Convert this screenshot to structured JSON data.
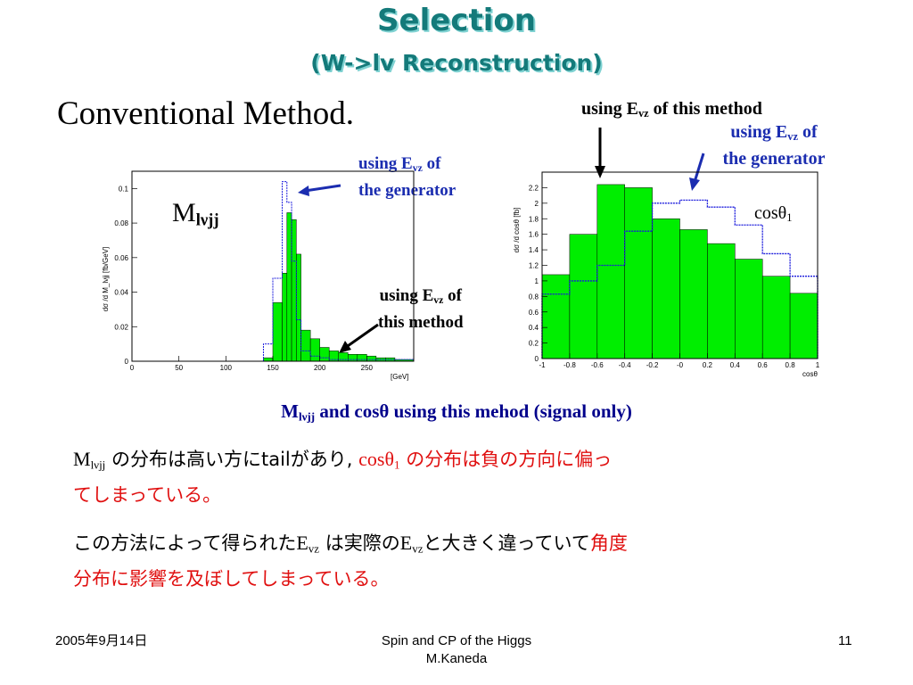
{
  "slide": {
    "title": "Selection",
    "subtitle": "(W->lv Reconstruction)",
    "section_heading": "Conventional Method."
  },
  "annotations": {
    "using_evz": "using E",
    "vz": "vz",
    "of_this_method": " of this method",
    "of": " of",
    "the_generator": "the generator",
    "this_method": "this method",
    "mass_label_M": "M",
    "mass_label_sub": "lνjj",
    "cos_label": "cosθ",
    "cos_sub": "1"
  },
  "caption": {
    "M": "M",
    "sub": "lνjj",
    "rest": " and cosθ using this mehod (signal only)"
  },
  "text": {
    "p1_M": "M",
    "p1_sub": "lνjj",
    "p1_a": " の分布は高い方に",
    "p1_tail": "tail",
    "p1_b": "があり, ",
    "p1_cos": "cosθ",
    "p1_cos_sub": "1",
    "p1_c": "の分布は負の方向に偏っ",
    "p1_d": "てしまっている。",
    "p2_a": "この方法によって得られた",
    "p2_E": "E",
    "p2_vz": "vz",
    "p2_b": " は実際の",
    "p2_c": "と大きく違っていて",
    "p2_red1": "角度",
    "p2_red2": "分布に影響を及ぼしてしまっている。"
  },
  "footer": {
    "date": "2005年9月14日",
    "title_line1": "Spin and CP of the Higgs",
    "title_line2": "M.Kaneda",
    "page": "11"
  },
  "colors": {
    "fill": "#00ee00",
    "generator_line": "#1a1adc",
    "title": "#147a7a",
    "annotation_blue": "#1b2db0",
    "emphasis_red": "#e01010"
  },
  "chart_data": [
    {
      "type": "bar",
      "ylabel": "dσ /d M_lνjj [fb/GeV]",
      "xlabel": "[GeV]",
      "xlim": [
        0,
        300
      ],
      "ylim": [
        0,
        0.11
      ],
      "xticks": [
        "0",
        "50",
        "100",
        "150",
        "200",
        "250"
      ],
      "yticks": [
        "0",
        "0.02",
        "0.04",
        "0.06",
        "0.08",
        "0.1"
      ],
      "bin_edges": [
        140,
        150,
        160,
        165,
        170,
        175,
        180,
        190,
        200,
        210,
        220,
        230,
        240,
        250,
        260,
        270,
        280,
        300
      ],
      "series": [
        {
          "values": [
            0.002,
            0.034,
            0.051,
            0.086,
            0.082,
            0.062,
            0.018,
            0.013,
            0.008,
            0.006,
            0.005,
            0.004,
            0.004,
            0.003,
            0.002,
            0.002,
            0.001
          ]
        },
        {
          "values": [
            0.01,
            0.048,
            0.104,
            0.092,
            0.058,
            0.024,
            0.006,
            0.003,
            0.002,
            0.001,
            0.001,
            0.001,
            0.001,
            0.001,
            0.001,
            0.001,
            0.001
          ]
        }
      ]
    },
    {
      "type": "bar",
      "ylabel": "dσ /d cosθ [fb]",
      "xlabel": "cosθ",
      "xlim": [
        -1,
        1
      ],
      "ylim": [
        0,
        2.4
      ],
      "xticks": [
        "-1",
        "-0.8",
        "-0.6",
        "-0.4",
        "-0.2",
        "-0",
        "0.2",
        "0.4",
        "0.6",
        "0.8",
        "1"
      ],
      "yticks": [
        "0",
        "0.2",
        "0.4",
        "0.6",
        "0.8",
        "1",
        "1.2",
        "1.4",
        "1.6",
        "1.8",
        "2",
        "2.2"
      ],
      "bin_edges": [
        -1,
        -0.8,
        -0.6,
        -0.4,
        -0.2,
        0,
        0.2,
        0.4,
        0.6,
        0.8,
        1
      ],
      "series": [
        {
          "values": [
            1.08,
            1.6,
            2.24,
            2.2,
            1.8,
            1.66,
            1.48,
            1.28,
            1.06,
            0.84
          ]
        },
        {
          "values": [
            0.83,
            1.0,
            1.2,
            1.64,
            2.0,
            2.04,
            1.95,
            1.72,
            1.35,
            1.06
          ]
        }
      ]
    }
  ]
}
